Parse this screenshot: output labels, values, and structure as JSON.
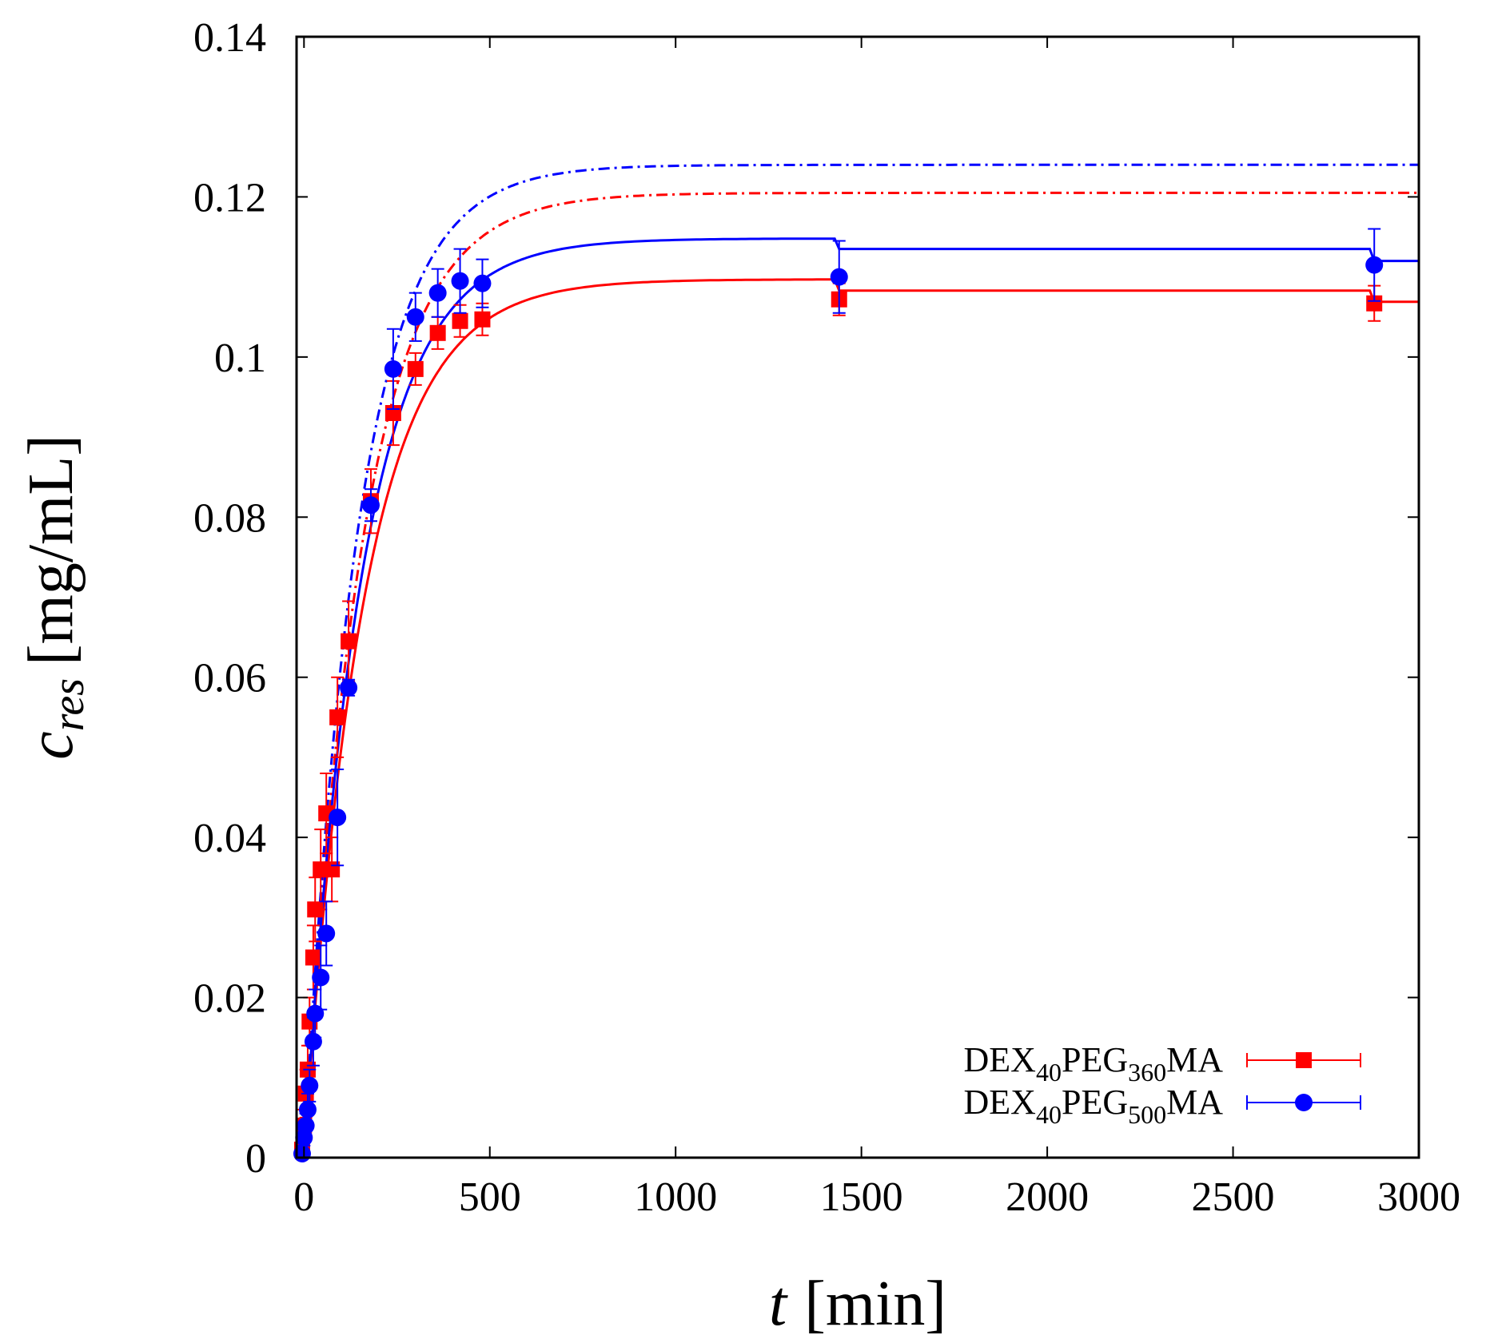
{
  "chart_data": {
    "type": "scatter",
    "title": "",
    "xlabel": {
      "var": "t",
      "unit": "[min]"
    },
    "ylabel": {
      "var": "c",
      "sub": "res",
      "unit": "[mg/mL]"
    },
    "xlim": [
      -20,
      3000
    ],
    "ylim": [
      0,
      0.14
    ],
    "xticks": [
      0,
      500,
      1000,
      1500,
      2000,
      2500,
      3000
    ],
    "yticks": [
      0,
      0.02,
      0.04,
      0.06,
      0.08,
      0.1,
      0.12,
      0.14
    ],
    "xtick_labels": [
      "0",
      "500",
      "1000",
      "1500",
      "2000",
      "2500",
      "3000"
    ],
    "ytick_labels": [
      "0",
      "0.02",
      "0.04",
      "0.06",
      "0.08",
      "0.1",
      "0.12",
      "0.14"
    ],
    "grid": false,
    "legend_position": "bottom-right",
    "series": [
      {
        "name": "DEX40PEG360MA",
        "legend": {
          "a": "DEX",
          "s1": "40",
          "b": "PEG",
          "s2": "360",
          "c": "MA"
        },
        "color": "#ff0000",
        "marker": "square",
        "x": [
          -5,
          0,
          5,
          10,
          15,
          25,
          30,
          45,
          60,
          75,
          90,
          120,
          180,
          240,
          300,
          360,
          420,
          480,
          1440,
          2880
        ],
        "y": [
          0.001,
          0.004,
          0.008,
          0.011,
          0.017,
          0.025,
          0.031,
          0.036,
          0.043,
          0.036,
          0.055,
          0.0645,
          0.082,
          0.093,
          0.0985,
          0.103,
          0.1045,
          0.1047,
          0.1072,
          0.1067
        ],
        "err": [
          0.001,
          0.002,
          0.003,
          0.003,
          0.003,
          0.004,
          0.004,
          0.005,
          0.005,
          0.004,
          0.005,
          0.005,
          0.004,
          0.004,
          0.002,
          0.002,
          0.002,
          0.002,
          0.002,
          0.0022
        ],
        "fit_curve": {
          "plateau_1": 0.1097,
          "plateau_2": 0.1083,
          "plateau_3": 0.1069,
          "tau": 160,
          "step_1": 1440,
          "step_2": 2880
        },
        "theory_curve": {
          "plateau": 0.1205,
          "tau": 155
        }
      },
      {
        "name": "DEX40PEG500MA",
        "legend": {
          "a": "DEX",
          "s1": "40",
          "b": "PEG",
          "s2": "500",
          "c": "MA"
        },
        "color": "#0000ff",
        "marker": "circle",
        "x": [
          -5,
          0,
          5,
          10,
          15,
          25,
          30,
          45,
          60,
          90,
          120,
          180,
          240,
          300,
          360,
          420,
          480,
          1440,
          2880
        ],
        "y": [
          0.0005,
          0.0025,
          0.004,
          0.006,
          0.009,
          0.0145,
          0.018,
          0.0225,
          0.028,
          0.0425,
          0.0587,
          0.0815,
          0.0985,
          0.105,
          0.108,
          0.1095,
          0.1092,
          0.11,
          0.1115
        ],
        "err": [
          0.0005,
          0.001,
          0.0015,
          0.002,
          0.002,
          0.003,
          0.003,
          0.004,
          0.004,
          0.006,
          0.001,
          0.002,
          0.005,
          0.003,
          0.003,
          0.004,
          0.003,
          0.0045,
          0.0045
        ],
        "fit_curve": {
          "plateau_1": 0.1148,
          "plateau_2": 0.1135,
          "plateau_3": 0.112,
          "tau": 155,
          "step_1": 1440,
          "step_2": 2880
        },
        "theory_curve": {
          "plateau": 0.124,
          "tau": 145
        }
      }
    ]
  },
  "colors": {
    "axis": "#000000",
    "series_1": "#ff0000",
    "series_2": "#0000ff"
  }
}
